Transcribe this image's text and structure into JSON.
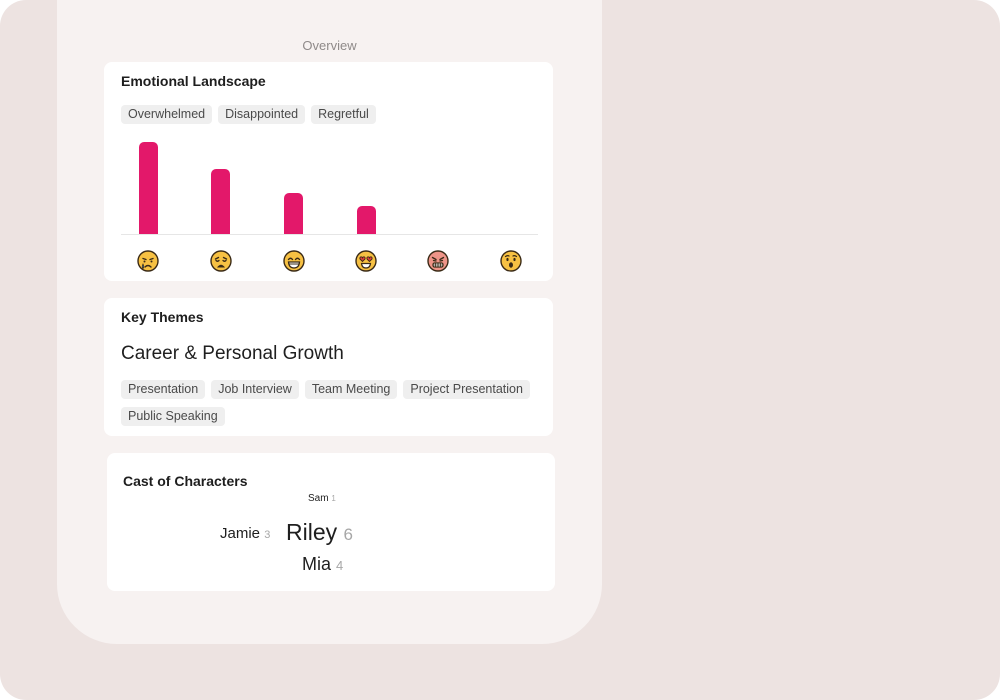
{
  "overview": {
    "label": "Overview"
  },
  "emotional_landscape": {
    "title": "Emotional Landscape",
    "tags": [
      "Overwhelmed",
      "Disappointed",
      "Regretful"
    ],
    "chart_data": {
      "type": "bar",
      "categories": [
        "crying-face",
        "weary-face",
        "grinning-face",
        "heart-eyes-face",
        "angry-face",
        "surprised-face"
      ],
      "values": [
        90,
        64,
        40,
        27,
        0,
        0
      ],
      "ylim": [
        0,
        100
      ],
      "bar_color": "#e3186a",
      "grid": false
    }
  },
  "key_themes": {
    "title": "Key Themes",
    "heading": "Career & Personal Growth",
    "tags": [
      "Presentation",
      "Job Interview",
      "Team Meeting",
      "Project Presentation",
      "Public Speaking"
    ]
  },
  "cast": {
    "title": "Cast of Characters",
    "characters": [
      {
        "name": "Sam",
        "count": "1"
      },
      {
        "name": "Jamie",
        "count": "3"
      },
      {
        "name": "Riley",
        "count": "6"
      },
      {
        "name": "Mia",
        "count": "4"
      }
    ]
  }
}
